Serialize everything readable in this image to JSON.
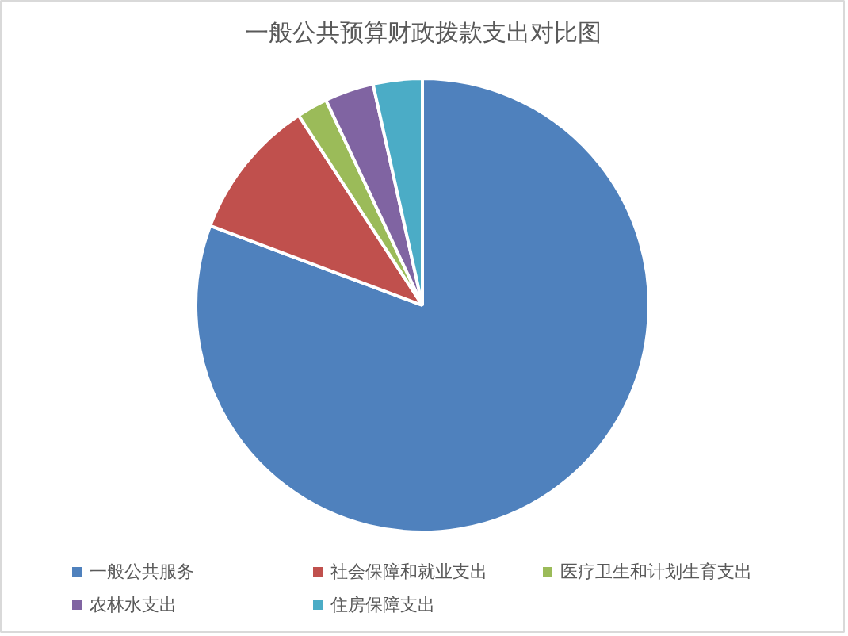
{
  "chart_data": {
    "type": "pie",
    "title": "一般公共预算财政拨款支出对比图",
    "categories": [
      "一般公共服务",
      "社会保障和就业支出",
      "医疗卫生和计划生育支出",
      "农林水支出",
      "住房保障支出"
    ],
    "values": [
      80.7,
      10.1,
      2.2,
      3.5,
      3.5
    ],
    "colors": [
      "#4f81bd",
      "#c0504d",
      "#9bbb59",
      "#8064a2",
      "#4bacc6"
    ],
    "legend": "bottom"
  }
}
